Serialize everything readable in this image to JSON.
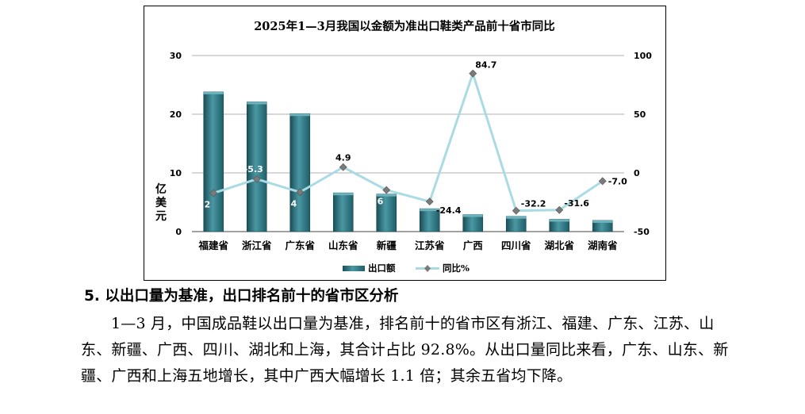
{
  "chart_data": {
    "type": "bar",
    "title": "2025年1—3月我国以金额为准出口鞋类产品前十省市同比",
    "categories": [
      "福建省",
      "浙江省",
      "广东省",
      "山东省",
      "新疆",
      "江苏省",
      "广西",
      "四川省",
      "湖北省",
      "湖南省"
    ],
    "series": [
      {
        "name": "出口额",
        "type": "bar",
        "axis": "left",
        "values": [
          23.8,
          22.1,
          20.1,
          6.6,
          6.4,
          3.9,
          2.9,
          2.6,
          2.1,
          1.9
        ]
      },
      {
        "name": "同比%",
        "type": "line",
        "axis": "right",
        "values": [
          -17.2,
          -5.3,
          -16.4,
          4.9,
          -14.6,
          -24.4,
          84.7,
          -32.2,
          -31.6,
          -7.0
        ],
        "labels": [
          "-17.2",
          "-5.3",
          "-16.4",
          "4.9",
          "-14.6",
          "-24.4",
          "84.7",
          "-32.2",
          "-31.6",
          "-7.0"
        ]
      }
    ],
    "ylabel": "亿美元",
    "ylim": [
      0,
      30
    ],
    "yticks": [
      "0",
      "10",
      "20",
      "30"
    ],
    "y2lim": [
      -50,
      100
    ],
    "y2ticks": [
      "-50",
      "0",
      "50",
      "100"
    ],
    "grid": true,
    "legend": "bottom",
    "colors": {
      "bar": "#2a7480",
      "bar_dark": "#1b4f58",
      "bar_light": "#4a98a4",
      "line": "#a9dbe4",
      "marker": "#7a7a7a"
    }
  },
  "section": {
    "heading": "5. 以出口量为基准，出口排名前十的省市区分析",
    "paragraph": "1—3 月，中国成品鞋以出口量为基准，排名前十的省市区有浙江、福建、广东、江苏、山东、新疆、广西、四川、湖北和上海，其合计占比 92.8%。从出口量同比来看，广东、山东、新疆、广西和上海五地增长，其中广西大幅增长 1.1 倍；其余五省均下降。"
  }
}
